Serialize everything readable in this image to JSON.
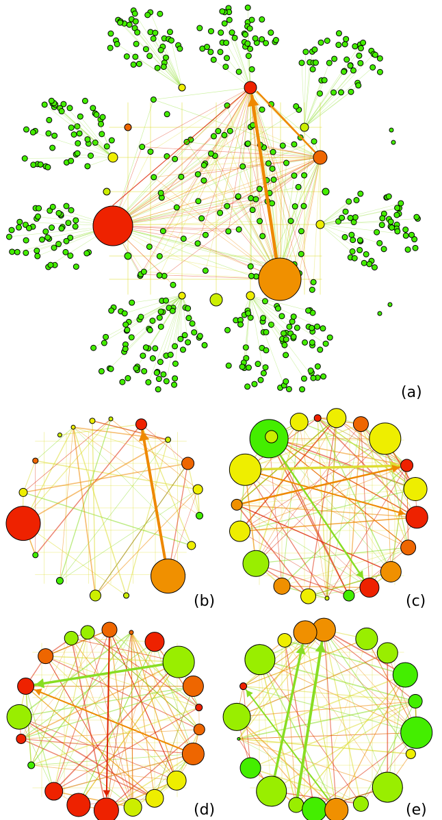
{
  "figure": {
    "panels": [
      {
        "id": "a",
        "label": "(a)"
      },
      {
        "id": "b",
        "label": "(b)"
      },
      {
        "id": "c",
        "label": "(c)"
      },
      {
        "id": "d",
        "label": "(d)"
      },
      {
        "id": "e",
        "label": "(e)"
      }
    ],
    "colors": {
      "green": "#44ee00",
      "lightgreen": "#99ee00",
      "yellowgreen": "#ccee00",
      "yellow": "#eeee00",
      "orange": "#f09000",
      "darkorange": "#ee6600",
      "red": "#ee2200",
      "edge_green": "#88dd22",
      "edge_yellow": "#dddd33",
      "edge_orange": "#ee8800",
      "edge_red": "#dd2200"
    }
  }
}
